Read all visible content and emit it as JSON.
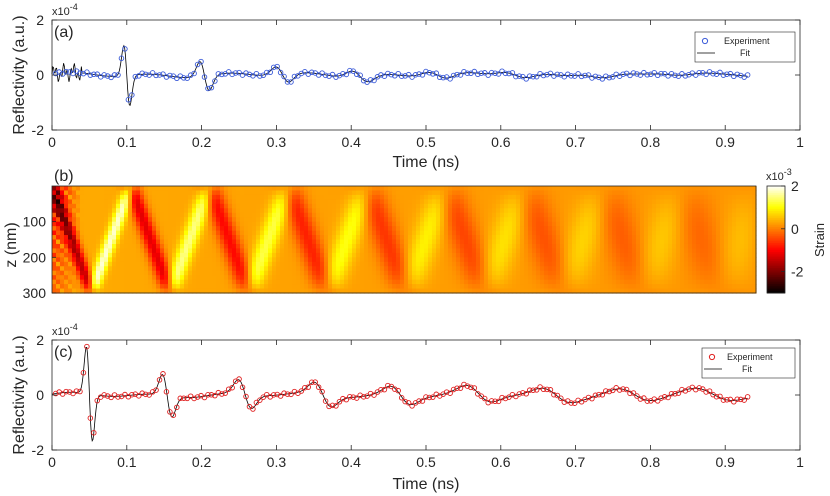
{
  "chart_data": [
    {
      "panel": "(a)",
      "type": "scatter",
      "xlabel": "Time (ns)",
      "ylabel": "Reflectivity (a.u.)",
      "exponent": "x10",
      "exponent_power": "-4",
      "xlim": [
        0,
        1
      ],
      "ylim": [
        -2,
        2
      ],
      "xticks": [
        0,
        0.1,
        0.2,
        0.3,
        0.4,
        0.5,
        0.6,
        0.7,
        0.8,
        0.9,
        1
      ],
      "xtick_labels": [
        "0",
        "0.1",
        "0.2",
        "0.3",
        "0.4",
        "0.5",
        "0.6",
        "0.7",
        "0.8",
        "0.9",
        "1"
      ],
      "yticks": [
        -2,
        0,
        2
      ],
      "ytick_labels": [
        "-2",
        "0",
        "2"
      ],
      "legend": [
        "Experiment",
        "Fit"
      ],
      "colors": {
        "experiment": "#3b5bd9",
        "fit": "#000000"
      },
      "echo": {
        "first": 0.1,
        "spacing": 0.104,
        "amps": [
          1.1,
          0.55,
          0.3,
          0.22,
          0.15,
          0.12,
          0.09,
          0.07,
          0.06
        ],
        "width": 0.004,
        "decay_width": 0.012
      },
      "noise_end": 0.04,
      "t_end": 0.93
    },
    {
      "panel": "(b)",
      "type": "heatmap",
      "xlim": [
        0,
        0.93
      ],
      "ylim": [
        0,
        300
      ],
      "ylabel": "z (nm)",
      "yticks": [
        100,
        200,
        300
      ],
      "ytick_labels": [
        "100",
        "200",
        "300"
      ],
      "colorbar_label": "Strain",
      "colorbar_exponent": "x10",
      "colorbar_exponent_power": "-3",
      "colorbar_ticks": [
        2,
        0,
        -2
      ],
      "colorbar_tick_labels": [
        "2",
        "0",
        "-2"
      ],
      "clim": [
        -3,
        2
      ],
      "colormap": "hot"
    },
    {
      "panel": "(c)",
      "type": "scatter",
      "xlabel": "Time (ns)",
      "ylabel": "Reflectivity (a.u.)",
      "exponent": "x10",
      "exponent_power": "-4",
      "xlim": [
        0,
        1
      ],
      "ylim": [
        -2,
        2
      ],
      "xticks": [
        0,
        0.1,
        0.2,
        0.3,
        0.4,
        0.5,
        0.6,
        0.7,
        0.8,
        0.9,
        1
      ],
      "xtick_labels": [
        "0",
        "0.1",
        "0.2",
        "0.3",
        "0.4",
        "0.5",
        "0.6",
        "0.7",
        "0.8",
        "0.9",
        "1"
      ],
      "yticks": [
        -2,
        0,
        2
      ],
      "ytick_labels": [
        "-2",
        "0",
        "2"
      ],
      "legend": [
        "Experiment",
        "Fit"
      ],
      "colors": {
        "experiment": "#e02020",
        "fit": "#000000"
      },
      "echo": {
        "first": 0.05,
        "spacing": 0.104,
        "amps": [
          1.7,
          0.75,
          0.5,
          0.4,
          0.3,
          0.25,
          0.2,
          0.18,
          0.15
        ],
        "width": 0.004,
        "decay_width": 0.012
      },
      "t_end": 0.93
    }
  ]
}
